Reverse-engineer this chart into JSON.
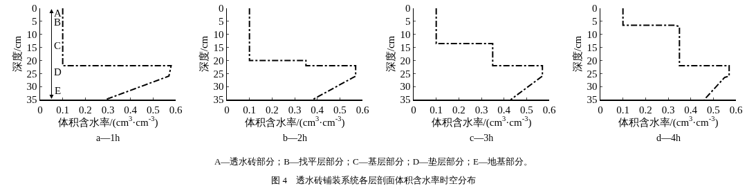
{
  "chart_data": [
    {
      "type": "line",
      "xlabel": "体积含水率/(cm$^{3}$·cm$^{-3}$)",
      "ylabel": "深度/cm",
      "subtitle": "a—1h",
      "xlim": [
        0,
        0.6
      ],
      "xticks": [
        0,
        0.1,
        0.2,
        0.3,
        0.4,
        0.5,
        0.6
      ],
      "ylim": [
        35,
        0
      ],
      "yticks": [
        0,
        5,
        10,
        15,
        20,
        25,
        30,
        35
      ],
      "grid": false,
      "line_style": "dashed",
      "series": [
        {
          "color": "#000000",
          "x": [
            0.1,
            0.1,
            0.58,
            0.57,
            0.29
          ],
          "values": [
            0,
            22,
            22,
            26,
            35
          ]
        }
      ],
      "annotations": [
        "A",
        "B",
        "C",
        "D",
        "E"
      ]
    },
    {
      "type": "line",
      "xlabel": "体积含水率/(cm$^{3}$·cm$^{-3}$)",
      "ylabel": "深度/cm",
      "subtitle": "b—2h",
      "xlim": [
        0,
        0.6
      ],
      "xticks": [
        0,
        0.1,
        0.2,
        0.3,
        0.4,
        0.5,
        0.6
      ],
      "ylim": [
        35,
        0
      ],
      "yticks": [
        0,
        5,
        10,
        15,
        20,
        25,
        30,
        35
      ],
      "grid": false,
      "line_style": "dashed",
      "series": [
        {
          "color": "#000000",
          "x": [
            0.1,
            0.1,
            0.35,
            0.35,
            0.57,
            0.57,
            0.38
          ],
          "values": [
            0,
            20,
            20,
            22,
            22,
            26,
            35
          ]
        }
      ]
    },
    {
      "type": "line",
      "xlabel": "体积含水率/(cm$^{3}$·cm$^{-3}$)",
      "ylabel": "深度/cm",
      "subtitle": "c—3h",
      "xlim": [
        0,
        0.6
      ],
      "xticks": [
        0,
        0.1,
        0.2,
        0.3,
        0.4,
        0.5,
        0.6
      ],
      "ylim": [
        35,
        0
      ],
      "yticks": [
        0,
        5,
        10,
        15,
        20,
        25,
        30,
        35
      ],
      "grid": false,
      "line_style": "dashed",
      "series": [
        {
          "color": "#000000",
          "x": [
            0.1,
            0.1,
            0.35,
            0.35,
            0.57,
            0.57,
            0.43
          ],
          "values": [
            0,
            13.5,
            13.5,
            22,
            22,
            26,
            35
          ]
        }
      ]
    },
    {
      "type": "line",
      "xlabel": "体积含水率/(cm$^{3}$·cm$^{-3}$)",
      "ylabel": "深度/cm",
      "subtitle": "d—4h",
      "xlim": [
        0,
        0.6
      ],
      "xticks": [
        0,
        0.1,
        0.2,
        0.3,
        0.4,
        0.5,
        0.6
      ],
      "ylim": [
        35,
        0
      ],
      "yticks": [
        0,
        5,
        10,
        15,
        20,
        25,
        30,
        35
      ],
      "grid": false,
      "line_style": "dashed",
      "series": [
        {
          "color": "#000000",
          "x": [
            0.1,
            0.1,
            0.33,
            0.35,
            0.35,
            0.57,
            0.57,
            0.55,
            0.46
          ],
          "values": [
            0,
            6.5,
            6.5,
            7,
            22,
            22,
            26,
            26.5,
            35
          ]
        }
      ],
      "annotations": [
        "A—透水砖部分；B—找平层部分；C—基层部分；D—垫层部分；E—地基部分。",
        "图 4　透水砖铺装系统各层剖面体积含水率时空分布"
      ]
    }
  ]
}
